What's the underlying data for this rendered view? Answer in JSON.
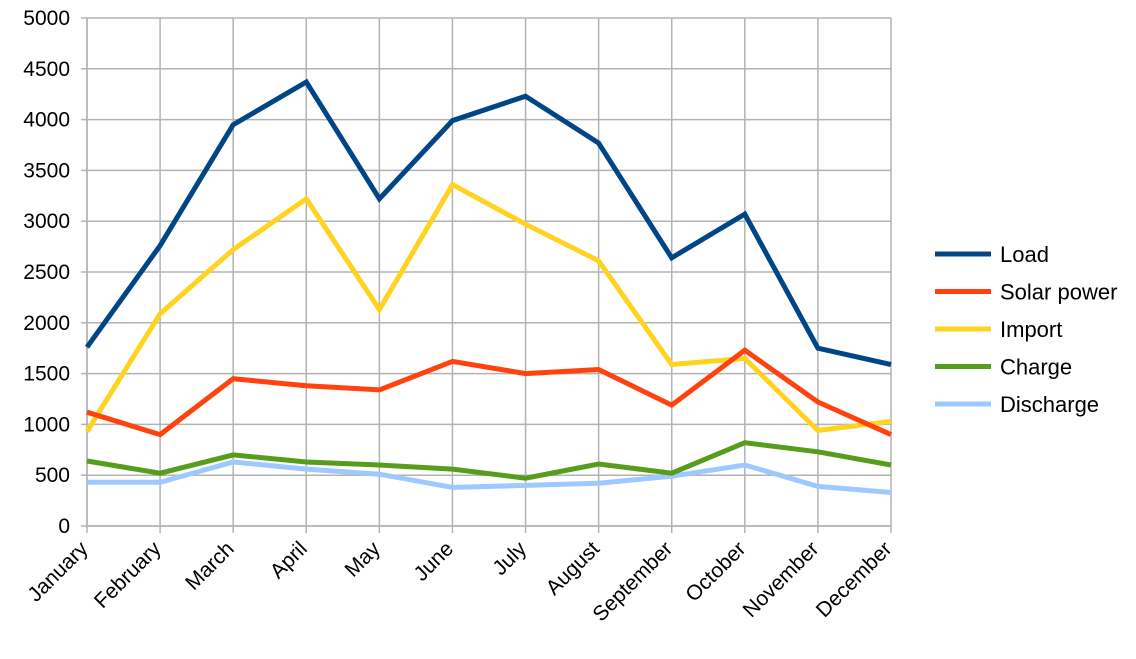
{
  "chart_data": {
    "type": "line",
    "title": "",
    "xlabel": "",
    "ylabel": "",
    "ylim": [
      0,
      5000
    ],
    "yticks": [
      0,
      500,
      1000,
      1500,
      2000,
      2500,
      3000,
      3500,
      4000,
      4500,
      5000
    ],
    "grid": true,
    "legend_position": "right",
    "categories": [
      "January",
      "February",
      "March",
      "April",
      "May",
      "June",
      "July",
      "August",
      "September",
      "October",
      "November",
      "December"
    ],
    "series": [
      {
        "name": "Load",
        "color": "#004586",
        "values": [
          1760,
          2760,
          3950,
          4370,
          3220,
          3990,
          4230,
          3770,
          2640,
          3070,
          1750,
          1590
        ]
      },
      {
        "name": "Solar power",
        "color": "#ff420e",
        "values": [
          1120,
          900,
          1450,
          1380,
          1340,
          1620,
          1500,
          1540,
          1190,
          1730,
          1220,
          900
        ]
      },
      {
        "name": "Import",
        "color": "#ffd320",
        "values": [
          930,
          2090,
          2720,
          3220,
          2130,
          3360,
          2970,
          2610,
          1590,
          1650,
          940,
          1030
        ]
      },
      {
        "name": "Charge",
        "color": "#579d1c",
        "values": [
          640,
          520,
          700,
          630,
          600,
          560,
          470,
          610,
          520,
          820,
          730,
          600
        ]
      },
      {
        "name": "Discharge",
        "color": "#9ec9ff",
        "values": [
          430,
          430,
          630,
          560,
          510,
          380,
          400,
          420,
          490,
          600,
          390,
          330
        ]
      }
    ]
  }
}
